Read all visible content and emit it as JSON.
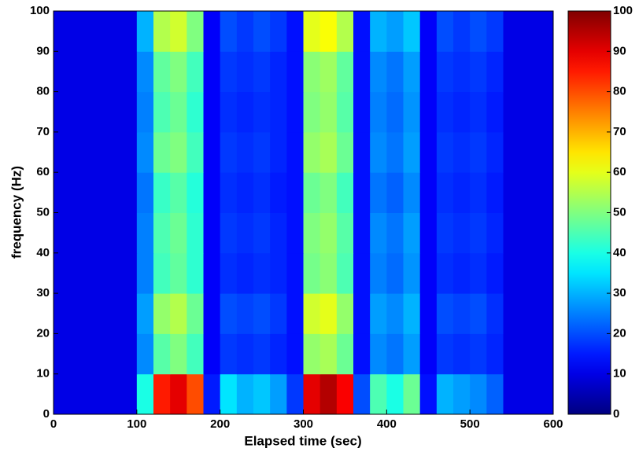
{
  "chart_data": {
    "type": "heatmap",
    "xlabel": "Elapsed time (sec)",
    "ylabel": "frequency (Hz)",
    "x": [
      0,
      20,
      40,
      60,
      80,
      100,
      120,
      140,
      160,
      180,
      200,
      220,
      240,
      260,
      280,
      300,
      320,
      340,
      360,
      380,
      400,
      420,
      440,
      460,
      480,
      500,
      520,
      540,
      560,
      580,
      600
    ],
    "y": [
      0,
      10,
      20,
      30,
      40,
      50,
      60,
      70,
      80,
      90,
      100
    ],
    "z": [
      [
        10,
        10,
        10,
        10,
        10,
        40,
        85,
        90,
        80,
        15,
        35,
        30,
        32,
        28,
        18,
        90,
        95,
        88,
        20,
        45,
        40,
        48,
        14,
        30,
        28,
        26,
        22,
        10,
        10,
        10
      ],
      [
        10,
        10,
        10,
        10,
        10,
        26,
        46,
        50,
        44,
        12,
        18,
        17,
        18,
        16,
        14,
        52,
        54,
        48,
        14,
        26,
        24,
        28,
        12,
        18,
        17,
        18,
        16,
        10,
        10,
        10
      ],
      [
        10,
        10,
        10,
        10,
        10,
        28,
        52,
        55,
        48,
        12,
        20,
        19,
        20,
        18,
        14,
        58,
        60,
        52,
        14,
        28,
        26,
        30,
        12,
        20,
        19,
        20,
        17,
        10,
        10,
        10
      ],
      [
        10,
        10,
        10,
        10,
        10,
        25,
        44,
        47,
        42,
        12,
        17,
        16,
        17,
        16,
        14,
        49,
        51,
        45,
        14,
        25,
        23,
        27,
        12,
        17,
        16,
        17,
        15,
        10,
        10,
        10
      ],
      [
        10,
        10,
        10,
        10,
        10,
        25,
        45,
        48,
        42,
        12,
        18,
        17,
        18,
        16,
        14,
        50,
        52,
        46,
        14,
        26,
        24,
        28,
        12,
        18,
        17,
        18,
        16,
        10,
        10,
        10
      ],
      [
        10,
        10,
        10,
        10,
        10,
        24,
        43,
        46,
        41,
        12,
        17,
        16,
        17,
        15,
        14,
        48,
        50,
        44,
        14,
        24,
        22,
        26,
        12,
        17,
        16,
        17,
        15,
        10,
        10,
        10
      ],
      [
        10,
        10,
        10,
        10,
        10,
        26,
        48,
        50,
        44,
        12,
        18,
        17,
        18,
        16,
        14,
        52,
        54,
        48,
        14,
        26,
        24,
        28,
        12,
        18,
        17,
        18,
        16,
        10,
        10,
        10
      ],
      [
        10,
        10,
        10,
        10,
        10,
        25,
        45,
        48,
        42,
        12,
        17,
        16,
        17,
        16,
        14,
        50,
        52,
        46,
        14,
        25,
        23,
        27,
        12,
        17,
        16,
        17,
        15,
        10,
        10,
        10
      ],
      [
        10,
        10,
        10,
        10,
        10,
        26,
        47,
        50,
        44,
        12,
        18,
        17,
        18,
        16,
        14,
        51,
        53,
        47,
        14,
        26,
        24,
        28,
        12,
        18,
        17,
        18,
        16,
        10,
        10,
        10
      ],
      [
        10,
        10,
        10,
        10,
        10,
        30,
        55,
        58,
        50,
        12,
        20,
        18,
        20,
        18,
        14,
        60,
        62,
        55,
        14,
        30,
        28,
        32,
        12,
        20,
        18,
        20,
        18,
        10,
        10,
        10
      ]
    ],
    "xlim": [
      0,
      600
    ],
    "ylim": [
      0,
      100
    ],
    "xticks": [
      0,
      100,
      200,
      300,
      400,
      500,
      600
    ],
    "yticks": [
      0,
      10,
      20,
      30,
      40,
      50,
      60,
      70,
      80,
      90,
      100
    ],
    "colormap": "jet",
    "clim": [
      0,
      100
    ],
    "cticks": [
      0,
      10,
      20,
      30,
      40,
      50,
      60,
      70,
      80,
      90,
      100
    ]
  }
}
